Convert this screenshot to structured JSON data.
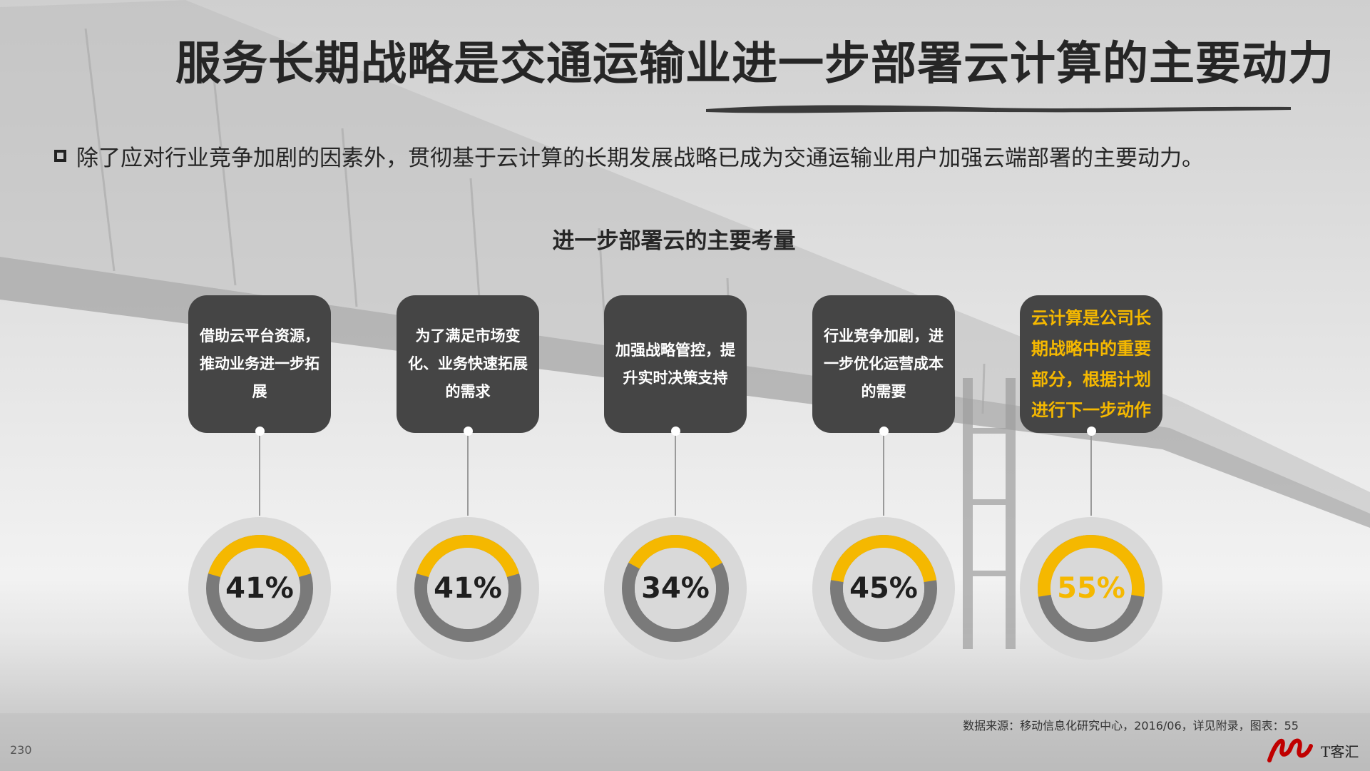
{
  "slide": {
    "title": "服务长期战略是交通运输业进一步部署云计算的主要动力",
    "bullet": "除了应对行业竞争加剧的因素外，贯彻基于云计算的长期发展战略已成为交通运输业用户加强云端部署的主要动力。",
    "chart_title": "进一步部署云的主要考量",
    "source": "数据来源：移动信息化研究中心，2016/06，详见附录，图表：55",
    "page_number": "230",
    "logo_text": "T客汇"
  },
  "colors": {
    "accent": "#f5b800",
    "card_bg": "#454545",
    "ring_track": "#7a7a7a",
    "outer_disc": "#d9d9d9"
  },
  "factors": [
    {
      "text": "借助云平台资源，推动业务进一步拓展",
      "value_label": "41%",
      "highlight": false
    },
    {
      "text": "为了满足市场变化、业务快速拓展的需求",
      "value_label": "41%",
      "highlight": false
    },
    {
      "text": "加强战略管控，提升实时决策支持",
      "value_label": "34%",
      "highlight": false
    },
    {
      "text": "行业竞争加剧，进一步优化运营成本的需要",
      "value_label": "45%",
      "highlight": false
    },
    {
      "text": "云计算是公司长期战略中的重要部分，根据计划进行下一步动作",
      "value_label": "55%",
      "highlight": true
    }
  ],
  "chart_data": {
    "type": "donut",
    "title": "进一步部署云的主要考量",
    "categories": [
      "借助云平台资源，推动业务进一步拓展",
      "为了满足市场变化、业务快速拓展的需求",
      "加强战略管控，提升实时决策支持",
      "行业竞争加剧，进一步优化运营成本的需要",
      "云计算是公司长期战略中的重要部分，根据计划进行下一步动作"
    ],
    "values": [
      41,
      41,
      34,
      45,
      55
    ],
    "unit": "%"
  }
}
